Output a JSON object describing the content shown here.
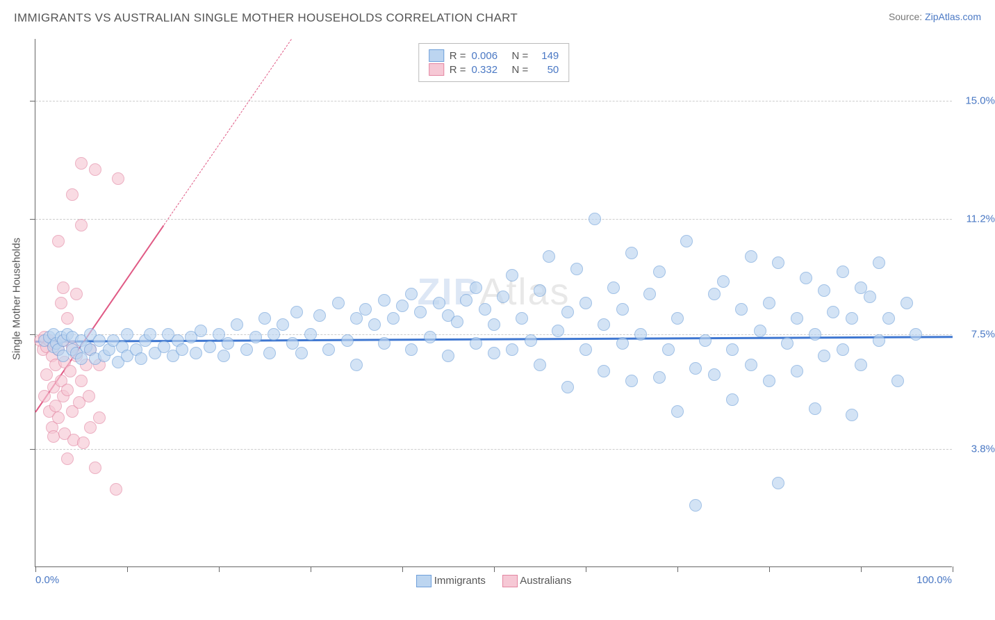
{
  "title": "IMMIGRANTS VS AUSTRALIAN SINGLE MOTHER HOUSEHOLDS CORRELATION CHART",
  "source_label": "Source: ",
  "source_name": "ZipAtlas.com",
  "watermark_bold": "ZIP",
  "watermark_light": "Atlas",
  "ylabel": "Single Mother Households",
  "chart": {
    "type": "scatter",
    "xlim": [
      0,
      100
    ],
    "ylim": [
      0,
      17
    ],
    "x_ticks": [
      0,
      10,
      20,
      30,
      40,
      50,
      60,
      70,
      80,
      90,
      100
    ],
    "y_ticks_minor": [
      3.8,
      7.5,
      11.2,
      15.0
    ],
    "y_gridlines": [
      {
        "v": 3.8,
        "label": "3.8%",
        "color": "#4a78c4"
      },
      {
        "v": 7.5,
        "label": "7.5%",
        "color": "#4a78c4"
      },
      {
        "v": 11.2,
        "label": "11.2%",
        "color": "#4a78c4"
      },
      {
        "v": 15.0,
        "label": "15.0%",
        "color": "#4a78c4"
      }
    ],
    "x_axis_labels": [
      {
        "v": 0,
        "text": "0.0%",
        "color": "#4a78c4",
        "align": "left"
      },
      {
        "v": 100,
        "text": "100.0%",
        "color": "#4a78c4",
        "align": "right"
      }
    ],
    "background_color": "#ffffff",
    "grid_color": "#cccccc",
    "axis_color": "#666666",
    "marker_radius": 9,
    "marker_stroke_width": 1.2,
    "series": [
      {
        "name": "Immigrants",
        "fill": "#bcd5f0",
        "stroke": "#6fa0da",
        "fill_opacity": 0.65,
        "R": "0.006",
        "N": "149",
        "trend": {
          "y_at_x0": 7.3,
          "y_at_x100": 7.45,
          "color": "#3f77d1",
          "width": 2.5
        },
        "points": [
          [
            1,
            7.3
          ],
          [
            1.5,
            7.4
          ],
          [
            2,
            7.1
          ],
          [
            2,
            7.5
          ],
          [
            2.3,
            7.2
          ],
          [
            2.5,
            7.0
          ],
          [
            2.8,
            7.4
          ],
          [
            3,
            6.8
          ],
          [
            3,
            7.3
          ],
          [
            3.5,
            7.5
          ],
          [
            4,
            7.0
          ],
          [
            4,
            7.4
          ],
          [
            4.5,
            6.9
          ],
          [
            5,
            7.3
          ],
          [
            5,
            6.7
          ],
          [
            5.5,
            7.1
          ],
          [
            6,
            7.0
          ],
          [
            6,
            7.5
          ],
          [
            6.5,
            6.7
          ],
          [
            7,
            7.3
          ],
          [
            7.5,
            6.8
          ],
          [
            8,
            7.0
          ],
          [
            8.5,
            7.3
          ],
          [
            9,
            6.6
          ],
          [
            9.5,
            7.1
          ],
          [
            10,
            6.8
          ],
          [
            10,
            7.5
          ],
          [
            11,
            7.0
          ],
          [
            11.5,
            6.7
          ],
          [
            12,
            7.3
          ],
          [
            12.5,
            7.5
          ],
          [
            13,
            6.9
          ],
          [
            14,
            7.1
          ],
          [
            14.5,
            7.5
          ],
          [
            15,
            6.8
          ],
          [
            15.5,
            7.3
          ],
          [
            16,
            7.0
          ],
          [
            17,
            7.4
          ],
          [
            17.5,
            6.9
          ],
          [
            18,
            7.6
          ],
          [
            19,
            7.1
          ],
          [
            20,
            7.5
          ],
          [
            20.5,
            6.8
          ],
          [
            21,
            7.2
          ],
          [
            22,
            7.8
          ],
          [
            23,
            7.0
          ],
          [
            24,
            7.4
          ],
          [
            25,
            8.0
          ],
          [
            25.5,
            6.9
          ],
          [
            26,
            7.5
          ],
          [
            27,
            7.8
          ],
          [
            28,
            7.2
          ],
          [
            28.5,
            8.2
          ],
          [
            29,
            6.9
          ],
          [
            30,
            7.5
          ],
          [
            31,
            8.1
          ],
          [
            32,
            7.0
          ],
          [
            33,
            8.5
          ],
          [
            34,
            7.3
          ],
          [
            35,
            8.0
          ],
          [
            35,
            6.5
          ],
          [
            36,
            8.3
          ],
          [
            37,
            7.8
          ],
          [
            38,
            8.6
          ],
          [
            38,
            7.2
          ],
          [
            39,
            8.0
          ],
          [
            40,
            8.4
          ],
          [
            41,
            7.0
          ],
          [
            41,
            8.8
          ],
          [
            42,
            8.2
          ],
          [
            43,
            7.4
          ],
          [
            44,
            8.5
          ],
          [
            45,
            6.8
          ],
          [
            45,
            8.1
          ],
          [
            46,
            7.9
          ],
          [
            47,
            8.6
          ],
          [
            48,
            7.2
          ],
          [
            48,
            9.0
          ],
          [
            49,
            8.3
          ],
          [
            50,
            6.9
          ],
          [
            50,
            7.8
          ],
          [
            51,
            8.7
          ],
          [
            52,
            7.0
          ],
          [
            52,
            9.4
          ],
          [
            53,
            8.0
          ],
          [
            54,
            7.3
          ],
          [
            55,
            8.9
          ],
          [
            55,
            6.5
          ],
          [
            56,
            10.0
          ],
          [
            57,
            7.6
          ],
          [
            58,
            8.2
          ],
          [
            58,
            5.8
          ],
          [
            59,
            9.6
          ],
          [
            60,
            7.0
          ],
          [
            60,
            8.5
          ],
          [
            61,
            11.2
          ],
          [
            62,
            6.3
          ],
          [
            62,
            7.8
          ],
          [
            63,
            9.0
          ],
          [
            64,
            7.2
          ],
          [
            64,
            8.3
          ],
          [
            65,
            6.0
          ],
          [
            65,
            10.1
          ],
          [
            66,
            7.5
          ],
          [
            67,
            8.8
          ],
          [
            68,
            6.1
          ],
          [
            68,
            9.5
          ],
          [
            69,
            7.0
          ],
          [
            70,
            8.0
          ],
          [
            70,
            5.0
          ],
          [
            71,
            10.5
          ],
          [
            72,
            6.4
          ],
          [
            72,
            2.0
          ],
          [
            73,
            7.3
          ],
          [
            74,
            8.8
          ],
          [
            74,
            6.2
          ],
          [
            75,
            9.2
          ],
          [
            76,
            7.0
          ],
          [
            76,
            5.4
          ],
          [
            77,
            8.3
          ],
          [
            78,
            6.5
          ],
          [
            78,
            10.0
          ],
          [
            79,
            7.6
          ],
          [
            80,
            8.5
          ],
          [
            80,
            6.0
          ],
          [
            81,
            9.8
          ],
          [
            81,
            2.7
          ],
          [
            82,
            7.2
          ],
          [
            83,
            8.0
          ],
          [
            83,
            6.3
          ],
          [
            84,
            9.3
          ],
          [
            85,
            7.5
          ],
          [
            85,
            5.1
          ],
          [
            86,
            8.9
          ],
          [
            86,
            6.8
          ],
          [
            87,
            8.2
          ],
          [
            88,
            9.5
          ],
          [
            88,
            7.0
          ],
          [
            89,
            8.0
          ],
          [
            89,
            4.9
          ],
          [
            90,
            9.0
          ],
          [
            90,
            6.5
          ],
          [
            91,
            8.7
          ],
          [
            92,
            7.3
          ],
          [
            92,
            9.8
          ],
          [
            93,
            8.0
          ],
          [
            94,
            6.0
          ],
          [
            95,
            8.5
          ],
          [
            96,
            7.5
          ]
        ]
      },
      {
        "name": "Australians",
        "fill": "#f6c8d5",
        "stroke": "#e386a2",
        "fill_opacity": 0.65,
        "R": "0.332",
        "N": "50",
        "trend": {
          "y_at_x0": 5.0,
          "y_at_x100": 48.0,
          "color": "#e05a85",
          "width": 2,
          "dash_after_x": 14
        },
        "points": [
          [
            0.5,
            7.3
          ],
          [
            0.8,
            7.0
          ],
          [
            1.0,
            7.4
          ],
          [
            1.0,
            5.5
          ],
          [
            1.2,
            6.2
          ],
          [
            1.2,
            7.1
          ],
          [
            1.5,
            5.0
          ],
          [
            1.5,
            7.3
          ],
          [
            1.8,
            4.5
          ],
          [
            1.8,
            6.8
          ],
          [
            2.0,
            5.8
          ],
          [
            2.0,
            7.2
          ],
          [
            2.0,
            4.2
          ],
          [
            2.2,
            6.5
          ],
          [
            2.2,
            5.2
          ],
          [
            2.5,
            7.0
          ],
          [
            2.5,
            4.8
          ],
          [
            2.5,
            10.5
          ],
          [
            2.8,
            6.0
          ],
          [
            2.8,
            8.5
          ],
          [
            3.0,
            5.5
          ],
          [
            3.0,
            7.3
          ],
          [
            3.0,
            9.0
          ],
          [
            3.2,
            4.3
          ],
          [
            3.2,
            6.6
          ],
          [
            3.5,
            5.7
          ],
          [
            3.5,
            8.0
          ],
          [
            3.5,
            3.5
          ],
          [
            3.8,
            6.3
          ],
          [
            4.0,
            5.0
          ],
          [
            4.0,
            7.1
          ],
          [
            4.0,
            12.0
          ],
          [
            4.2,
            4.1
          ],
          [
            4.5,
            6.8
          ],
          [
            4.5,
            8.8
          ],
          [
            4.8,
            5.3
          ],
          [
            5.0,
            6.0
          ],
          [
            5.0,
            11.0
          ],
          [
            5.0,
            13.0
          ],
          [
            5.2,
            4.0
          ],
          [
            5.5,
            6.5
          ],
          [
            5.8,
            5.5
          ],
          [
            6.0,
            4.5
          ],
          [
            6.0,
            7.0
          ],
          [
            6.5,
            3.2
          ],
          [
            6.5,
            12.8
          ],
          [
            7.0,
            4.8
          ],
          [
            7.0,
            6.5
          ],
          [
            8.8,
            2.5
          ],
          [
            9.0,
            12.5
          ]
        ]
      }
    ],
    "legend_bottom": [
      {
        "label": "Immigrants",
        "fill": "#bcd5f0",
        "stroke": "#6fa0da"
      },
      {
        "label": "Australians",
        "fill": "#f6c8d5",
        "stroke": "#e386a2"
      }
    ],
    "legend_top_headers": {
      "r": "R =",
      "n": "N ="
    }
  }
}
